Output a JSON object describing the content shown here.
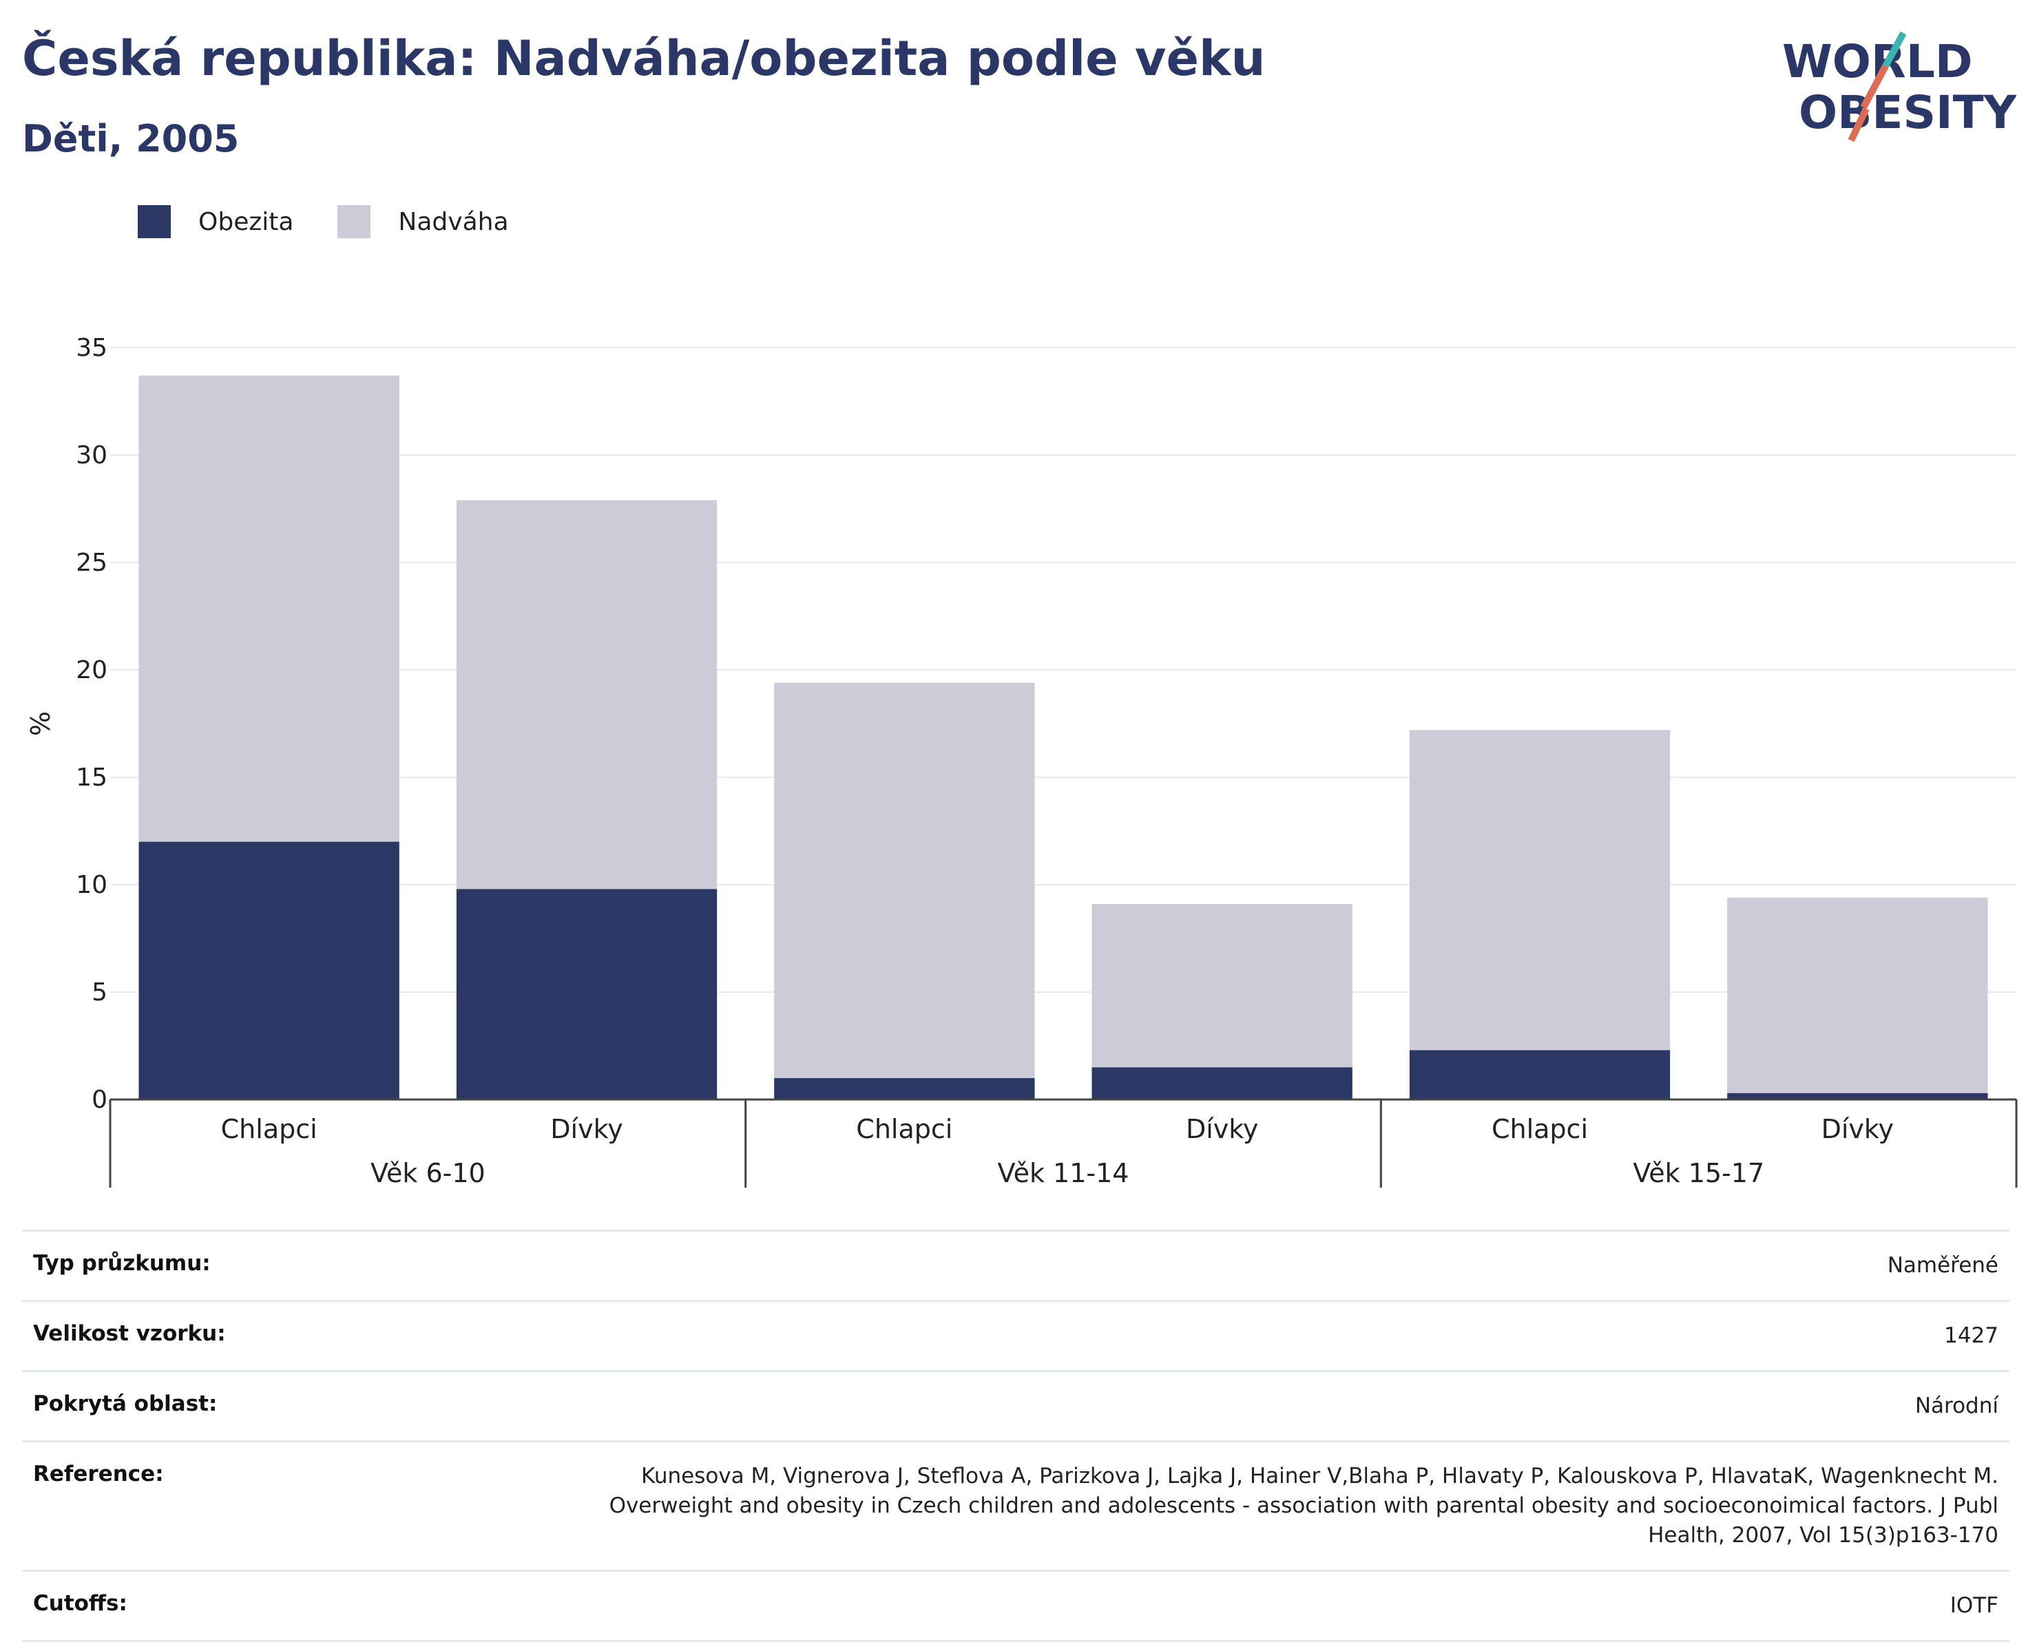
{
  "header": {
    "title": "Česká republika: Nadváha/obezita podle věku",
    "subtitle": "Děti, 2005"
  },
  "logo": {
    "line1": "WORLD",
    "line2": "OBESITY"
  },
  "chart_data": {
    "type": "bar",
    "stacked": true,
    "ylabel": "%",
    "ylim": [
      0,
      35
    ],
    "yticks": [
      0,
      5,
      10,
      15,
      20,
      25,
      30,
      35
    ],
    "grid": true,
    "legend_position": "top-left",
    "groups": [
      {
        "label": "Věk 6-10",
        "categories": [
          "Chlapci",
          "Dívky"
        ]
      },
      {
        "label": "Věk 11-14",
        "categories": [
          "Chlapci",
          "Dívky"
        ]
      },
      {
        "label": "Věk 15-17",
        "categories": [
          "Chlapci",
          "Dívky"
        ]
      }
    ],
    "series": [
      {
        "name": "Obezita",
        "color": "#2b3765",
        "values": [
          12.0,
          9.8,
          1.0,
          1.5,
          2.3,
          0.3
        ]
      },
      {
        "name": "Nadváha",
        "color": "#cbccd8",
        "values": [
          21.7,
          18.1,
          18.4,
          7.6,
          14.9,
          9.1
        ]
      }
    ]
  },
  "meta": [
    {
      "label": "Typ průzkumu:",
      "value": "Naměřené"
    },
    {
      "label": "Velikost vzorku:",
      "value": "1427"
    },
    {
      "label": "Pokrytá oblast:",
      "value": "Národní"
    },
    {
      "label": "Reference:",
      "value": "Kunesova M, Vignerova J, Steflova A, Parizkova J, Lajka J, Hainer V,Blaha P, Hlavaty P, Kalouskova P, HlavataK, Wagenknecht M. Overweight and obesity in Czech children and adolescents - association with parental obesity and socioeconoimical factors. J Publ Health, 2007, Vol 15(3)p163-170"
    },
    {
      "label": "Cutoffs:",
      "value": "IOTF"
    }
  ]
}
